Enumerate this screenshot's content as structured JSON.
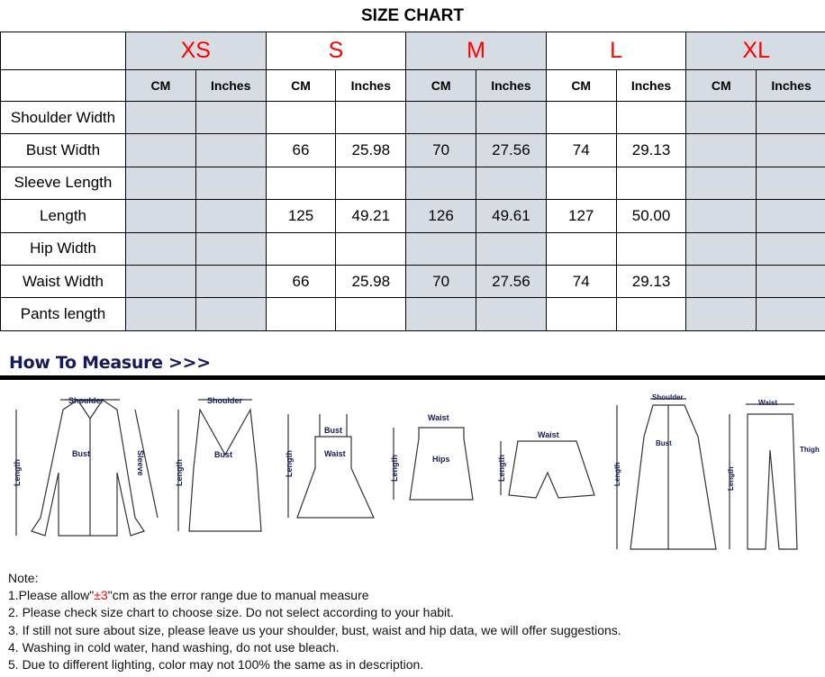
{
  "title": "SIZE CHART",
  "sizes": [
    "XS",
    "S",
    "M",
    "L",
    "XL"
  ],
  "shaded_sizes": [
    "XS",
    "M",
    "XL"
  ],
  "units": [
    "CM",
    "Inches"
  ],
  "rows": [
    {
      "label": "Shoulder Width",
      "values": [
        "",
        "",
        "",
        "",
        "",
        "",
        "",
        "",
        "",
        ""
      ]
    },
    {
      "label": "Bust Width",
      "values": [
        "",
        "",
        "66",
        "25.98",
        "70",
        "27.56",
        "74",
        "29.13",
        "",
        ""
      ]
    },
    {
      "label": "Sleeve Length",
      "values": [
        "",
        "",
        "",
        "",
        "",
        "",
        "",
        "",
        "",
        ""
      ]
    },
    {
      "label": "Length",
      "values": [
        "",
        "",
        "125",
        "49.21",
        "126",
        "49.61",
        "127",
        "50.00",
        "",
        ""
      ]
    },
    {
      "label": "Hip Width",
      "values": [
        "",
        "",
        "",
        "",
        "",
        "",
        "",
        "",
        "",
        ""
      ]
    },
    {
      "label": "Waist Width",
      "values": [
        "",
        "",
        "66",
        "25.98",
        "70",
        "27.56",
        "74",
        "29.13",
        "",
        ""
      ]
    },
    {
      "label": "Pants length",
      "values": [
        "",
        "",
        "",
        "",
        "",
        "",
        "",
        "",
        "",
        ""
      ]
    }
  ],
  "colors": {
    "size_text": "#ff0000",
    "shade": "#d6dce4",
    "measure_heading": "#141a5c"
  },
  "how_to_measure": {
    "heading": "How To Measure >>>",
    "labels": {
      "shoulder": "Shoulder",
      "bust": "Bust",
      "sleeve": "Sleeve",
      "length": "Length",
      "waist": "Waist",
      "hips": "Hips",
      "thigh": "Thigh"
    }
  },
  "notes": {
    "heading": "Note:",
    "line1_pre": "1.Please allow\"",
    "line1_red": "±3",
    "line1_post": "\"cm as the error range due to manual measure",
    "line2": "2. Please check size chart to choose size. Do not select according to your habit.",
    "line3": "3. If still not sure about size, please leave us your shoulder, bust, waist and hip data, we will offer suggestions.",
    "line4": "4. Washing in cold water, hand washing, do not use bleach.",
    "line5": "5. Due to different lighting, color may not 100% the same as in description."
  }
}
